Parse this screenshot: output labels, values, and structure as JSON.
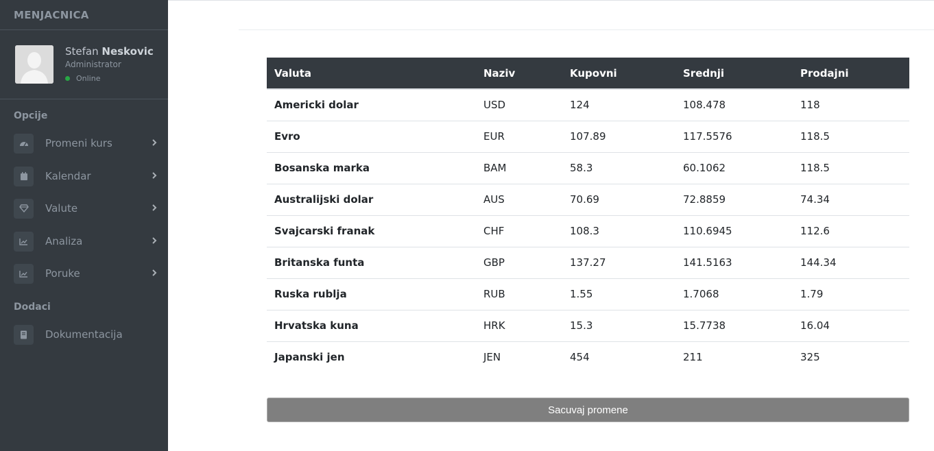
{
  "brand": "MENJACNICA",
  "user": {
    "first_name": "Stefan",
    "last_name": "Neskovic",
    "role": "Administrator",
    "status": "Online"
  },
  "sidebar": {
    "sections": [
      {
        "title": "Opcije",
        "items": [
          {
            "label": "Promeni kurs",
            "icon": "dashboard-icon"
          },
          {
            "label": "Kalendar",
            "icon": "calendar-icon"
          },
          {
            "label": "Valute",
            "icon": "gem-icon"
          },
          {
            "label": "Analiza",
            "icon": "chart-icon"
          },
          {
            "label": "Poruke",
            "icon": "chart-icon"
          }
        ]
      },
      {
        "title": "Dodaci",
        "items": [
          {
            "label": "Dokumentacija",
            "icon": "book-icon"
          }
        ]
      }
    ]
  },
  "table": {
    "headers": [
      "Valuta",
      "Naziv",
      "Kupovni",
      "Srednji",
      "Prodajni"
    ],
    "rows": [
      [
        "Americki dolar",
        "USD",
        "124",
        "108.478",
        "118"
      ],
      [
        "Evro",
        "EUR",
        "107.89",
        "117.5576",
        "118.5"
      ],
      [
        "Bosanska marka",
        "BAM",
        "58.3",
        "60.1062",
        "118.5"
      ],
      [
        "Australijski dolar",
        "AUS",
        "70.69",
        "72.8859",
        "74.34"
      ],
      [
        "Svajcarski franak",
        "CHF",
        "108.3",
        "110.6945",
        "112.6"
      ],
      [
        "Britanska funta",
        "GBP",
        "137.27",
        "141.5163",
        "144.34"
      ],
      [
        "Ruska rublja",
        "RUB",
        "1.55",
        "1.7068",
        "1.79"
      ],
      [
        "Hrvatska kuna",
        "HRK",
        "15.3",
        "15.7738",
        "16.04"
      ],
      [
        "Japanski jen",
        "JEN",
        "454",
        "211",
        "325"
      ]
    ]
  },
  "save_button": "Sacuvaj promene",
  "colors": {
    "sidebar_bg": "#343a40",
    "table_header_bg": "#343a40",
    "button_bg": "#7f7f7f",
    "status_online": "#28a745"
  }
}
